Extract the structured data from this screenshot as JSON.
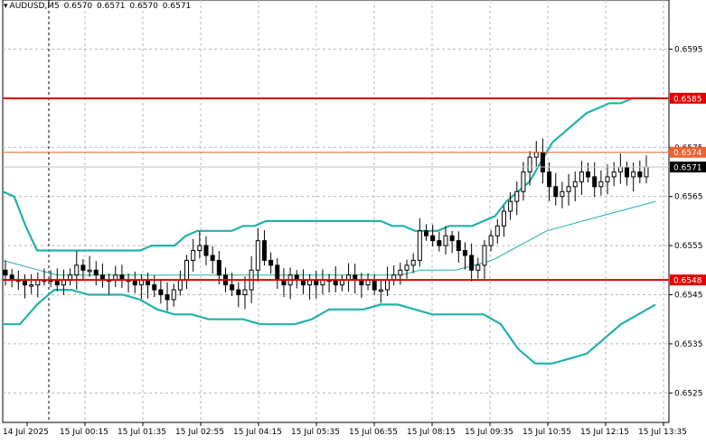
{
  "header": {
    "symbol": "AUDUSD,M5",
    "open": "0.6570",
    "high": "0.6571",
    "low": "0.6570",
    "close": "0.6571"
  },
  "chart_data": {
    "type": "candlestick",
    "symbol": "AUDUSD",
    "timeframe": "M5",
    "ylim": [
      0.6519,
      0.6605
    ],
    "y_ticks": [
      "0.6595",
      "0.6585",
      "0.6575",
      "0.6574",
      "0.6571",
      "0.6565",
      "0.6555",
      "0.6548",
      "0.6545",
      "0.6535",
      "0.6525"
    ],
    "x_ticks": [
      "14 Jul 2025",
      "15 Jul 00:15",
      "15 Jul 01:35",
      "15 Jul 02:55",
      "15 Jul 04:15",
      "15 Jul 05:35",
      "15 Jul 06:55",
      "15 Jul 08:15",
      "15 Jul 09:35",
      "15 Jul 10:55",
      "15 Jul 12:15",
      "15 Jul 13:35"
    ],
    "grid": true,
    "levels": [
      {
        "price": 0.6585,
        "label": "0.6585",
        "color": "#e00000"
      },
      {
        "price": 0.6574,
        "label": "0.6574",
        "color": "#f06030"
      },
      {
        "price": 0.6548,
        "label": "0.6548",
        "color": "#e00000"
      }
    ],
    "current_price": {
      "price": 0.6571,
      "label": "0.6571"
    },
    "bollinger": {
      "color": "#20b2aa"
    },
    "close_path": [
      0.6549,
      0.6548,
      0.6548,
      0.6547,
      0.6547,
      0.6548,
      0.6548,
      0.6548,
      0.6547,
      0.6548,
      0.6549,
      0.6551,
      0.655,
      0.655,
      0.6549,
      0.6548,
      0.6548,
      0.6549,
      0.6548,
      0.6548,
      0.6547,
      0.6548,
      0.6547,
      0.6546,
      0.6545,
      0.6544,
      0.6546,
      0.6548,
      0.6552,
      0.6554,
      0.6555,
      0.6553,
      0.6552,
      0.6549,
      0.6547,
      0.6546,
      0.6545,
      0.6546,
      0.655,
      0.6556,
      0.6552,
      0.6551,
      0.6548,
      0.6547,
      0.6549,
      0.6548,
      0.6547,
      0.6548,
      0.6547,
      0.6548,
      0.6548,
      0.6547,
      0.6548,
      0.6549,
      0.6548,
      0.6547,
      0.6548,
      0.6546,
      0.6546,
      0.6548,
      0.6549,
      0.655,
      0.6551,
      0.6552,
      0.6558,
      0.6557,
      0.6556,
      0.6555,
      0.6557,
      0.6556,
      0.6554,
      0.6553,
      0.655,
      0.6551,
      0.6555,
      0.6557,
      0.6559,
      0.6562,
      0.6564,
      0.6566,
      0.657,
      0.6573,
      0.6574,
      0.657,
      0.6567,
      0.6565,
      0.6566,
      0.6567,
      0.6568,
      0.657,
      0.6569,
      0.6567,
      0.6568,
      0.6569,
      0.657,
      0.6571,
      0.6569,
      0.657,
      0.6569,
      0.6571
    ],
    "bb_upper": [
      0.6566,
      0.6565,
      0.6559,
      0.6554,
      0.6554,
      0.6554,
      0.6554,
      0.6554,
      0.6554,
      0.6554,
      0.6554,
      0.6554,
      0.6554,
      0.6555,
      0.6555,
      0.6555,
      0.6557,
      0.6558,
      0.6558,
      0.6558,
      0.6558,
      0.6559,
      0.6559,
      0.656,
      0.656,
      0.656,
      0.656,
      0.656,
      0.656,
      0.656,
      0.656,
      0.656,
      0.656,
      0.656,
      0.6559,
      0.6559,
      0.6558,
      0.6558,
      0.6558,
      0.6559,
      0.6559,
      0.6559,
      0.656,
      0.6561,
      0.6564,
      0.6566,
      0.6568,
      0.6572,
      0.6576,
      0.6578,
      0.658,
      0.6582,
      0.6583,
      0.6584,
      0.6584,
      0.6585,
      0.6585,
      0.6585
    ],
    "bb_middle": [
      0.6552,
      0.6551,
      0.655,
      0.6549,
      0.6549,
      0.6549,
      0.6549,
      0.6549,
      0.6549,
      0.6549,
      0.6549,
      0.6549,
      0.6549,
      0.6549,
      0.6549,
      0.6549,
      0.6549,
      0.6549,
      0.6549,
      0.6549,
      0.6549,
      0.6549,
      0.6549,
      0.655,
      0.655,
      0.655,
      0.6551,
      0.6552,
      0.6554,
      0.6556,
      0.6558,
      0.6559,
      0.656,
      0.6561,
      0.6562,
      0.6563,
      0.6564
    ],
    "bb_lower": [
      0.6539,
      0.6539,
      0.6543,
      0.6546,
      0.6546,
      0.6545,
      0.6545,
      0.6545,
      0.6544,
      0.6542,
      0.6541,
      0.6541,
      0.654,
      0.654,
      0.654,
      0.6539,
      0.6539,
      0.6539,
      0.654,
      0.6542,
      0.6542,
      0.6542,
      0.6543,
      0.6543,
      0.6542,
      0.6541,
      0.6541,
      0.6541,
      0.6541,
      0.6539,
      0.6534,
      0.6531,
      0.6531,
      0.6532,
      0.6533,
      0.6536,
      0.6539,
      0.6541,
      0.6543
    ]
  }
}
